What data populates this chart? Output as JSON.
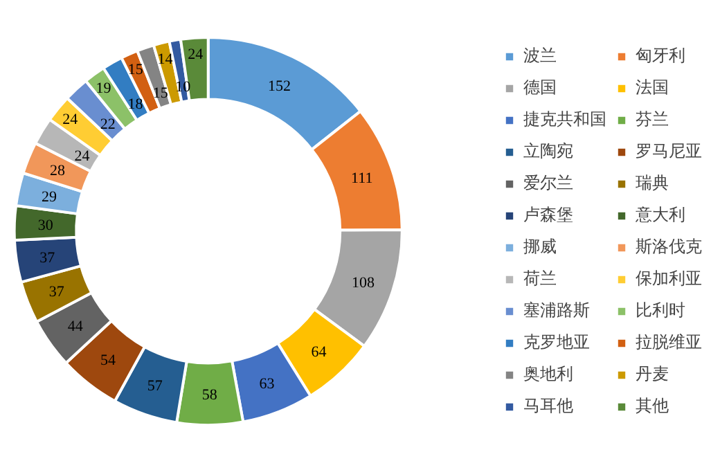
{
  "chart_data": {
    "type": "donut",
    "categories": [
      "波兰",
      "匈牙利",
      "德国",
      "法国",
      "捷克共和国",
      "芬兰",
      "立陶宛",
      "罗马尼亚",
      "爱尔兰",
      "瑞典",
      "卢森堡",
      "意大利",
      "挪威",
      "斯洛伐克",
      "荷兰",
      "保加利亚",
      "塞浦路斯",
      "比利时",
      "克罗地亚",
      "拉脱维亚",
      "奥地利",
      "丹麦",
      "马耳他",
      "其他"
    ],
    "values": [
      152,
      111,
      108,
      64,
      63,
      58,
      57,
      54,
      44,
      37,
      37,
      30,
      29,
      28,
      24,
      24,
      22,
      19,
      18,
      15,
      15,
      14,
      10,
      24
    ],
    "colors": [
      "#5b9bd5",
      "#ed7d31",
      "#a5a5a5",
      "#ffc000",
      "#4472c4",
      "#70ad47",
      "#255e91",
      "#9e480e",
      "#636363",
      "#997300",
      "#264478",
      "#43682b",
      "#7cafdd",
      "#f1975a",
      "#b7b7b7",
      "#ffcd33",
      "#698ed0",
      "#8cc168",
      "#327dc2",
      "#d26012",
      "#848484",
      "#cc9a00",
      "#335aa1",
      "#5a8a39"
    ],
    "data_labels": true,
    "legend": "right"
  }
}
